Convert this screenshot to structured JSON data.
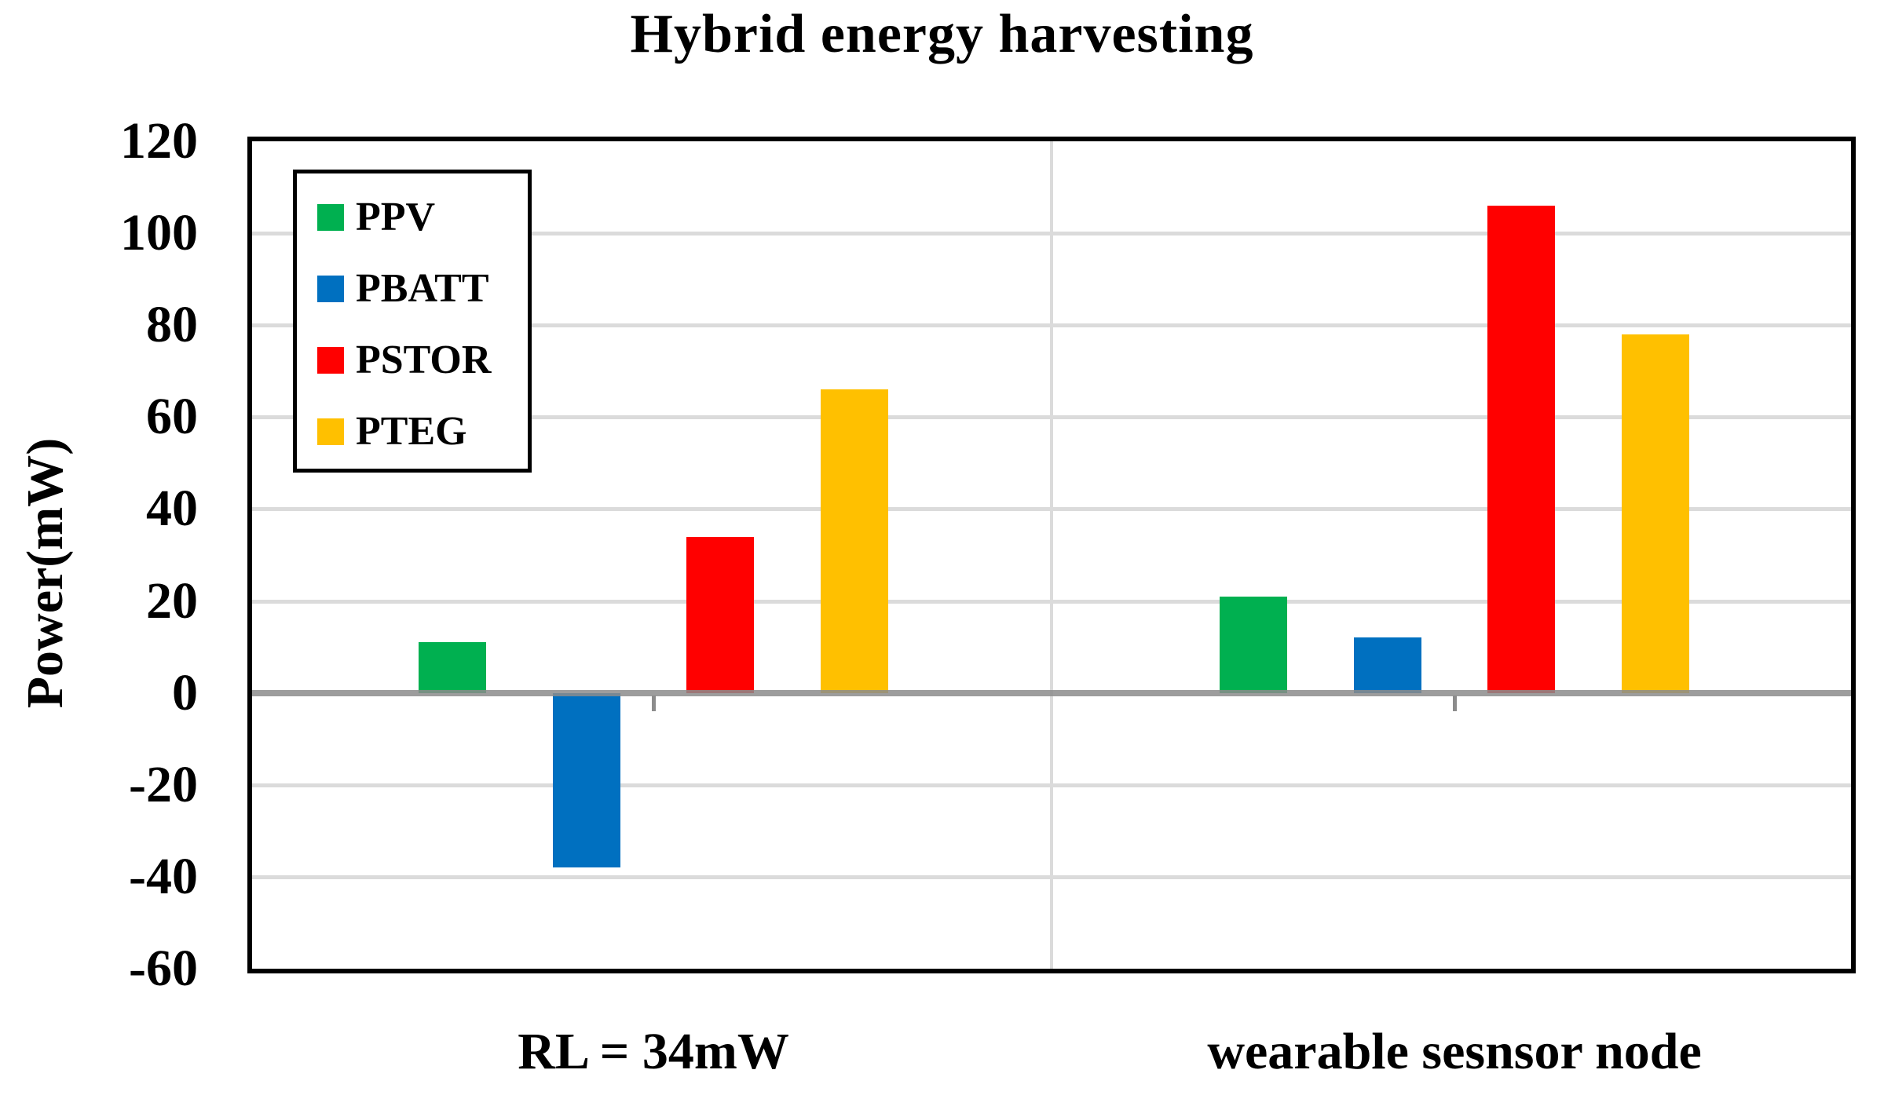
{
  "title": "Hybrid energy harvesting",
  "y_axis": {
    "label": "Power(mW)"
  },
  "chart_data": {
    "type": "bar",
    "title": "Hybrid energy harvesting",
    "ylabel": "Power(mW)",
    "ylim": [
      -60,
      120
    ],
    "ytick_step": 20,
    "grid": true,
    "legend_position": "upper-left-inside",
    "categories": [
      "RL = 34mW",
      "wearable sesnsor node"
    ],
    "series": [
      {
        "name": "PPV",
        "color": "#00B050",
        "values": [
          11,
          21
        ]
      },
      {
        "name": "PBATT",
        "color": "#0070C0",
        "values": [
          -38,
          12
        ]
      },
      {
        "name": "PSTOR",
        "color": "#FF0000",
        "values": [
          34,
          106
        ]
      },
      {
        "name": "PTEG",
        "color": "#FFC000",
        "values": [
          66,
          78
        ]
      }
    ],
    "colors": {
      "gridline": "#DBDBDB",
      "zero_line": "#8C8C8C",
      "plot_border": "#000000"
    }
  }
}
